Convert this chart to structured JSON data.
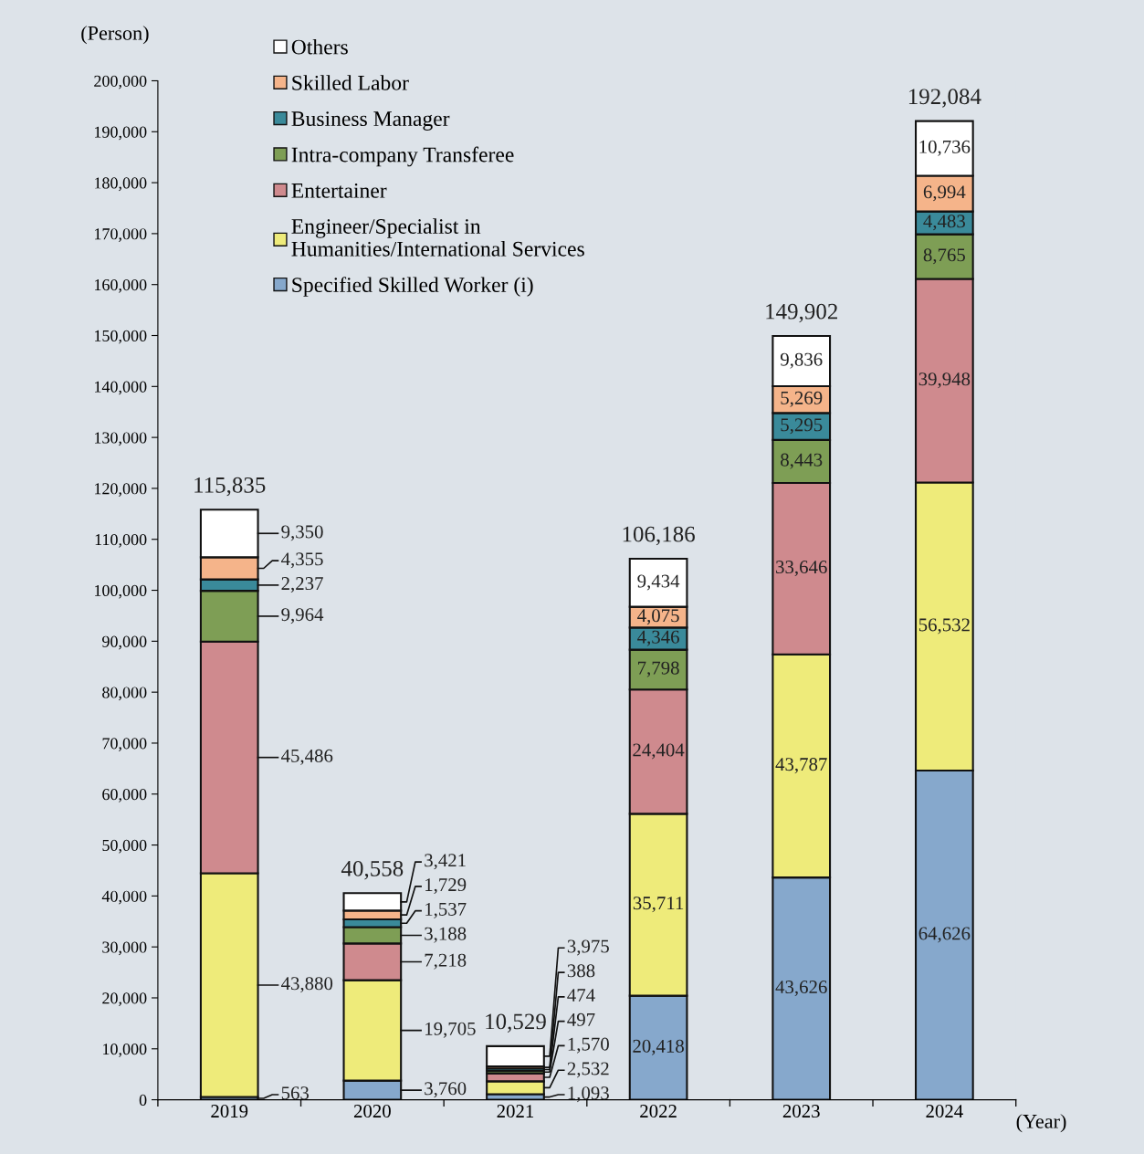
{
  "chart_data": {
    "type": "bar",
    "stacked": true,
    "ylabel": "(Person)",
    "xlabel": "(Year)",
    "categories": [
      "2019",
      "2020",
      "2021",
      "2022",
      "2023",
      "2024"
    ],
    "series": [
      {
        "name": "Specified Skilled Worker (i)",
        "color": "#86a8cc",
        "values": [
          563,
          3760,
          1093,
          20418,
          43626,
          64626
        ],
        "value_labels": [
          "563",
          "3,760",
          "1,093",
          "20,418",
          "43,626",
          "64,626"
        ]
      },
      {
        "name": "Engineer/Specialist in\nHumanities/International Services",
        "color": "#eeeb7a",
        "values": [
          43880,
          19705,
          2532,
          35711,
          43787,
          56532
        ],
        "value_labels": [
          "43,880",
          "19,705",
          "2,532",
          "35,711",
          "43,787",
          "56,532"
        ]
      },
      {
        "name": "Entertainer",
        "color": "#cf8a8e",
        "values": [
          45486,
          7218,
          1570,
          24404,
          33646,
          39948
        ],
        "value_labels": [
          "45,486",
          "7,218",
          "1,570",
          "24,404",
          "33,646",
          "39,948"
        ]
      },
      {
        "name": "Intra-company Transferee",
        "color": "#7e9e55",
        "values": [
          9964,
          3188,
          497,
          7798,
          8443,
          8765
        ],
        "value_labels": [
          "9,964",
          "3,188",
          "497",
          "7,798",
          "8,443",
          "8,765"
        ]
      },
      {
        "name": "Business Manager",
        "color": "#3a8a9a",
        "values": [
          2237,
          1537,
          474,
          4346,
          5295,
          4483
        ],
        "value_labels": [
          "2,237",
          "1,537",
          "474",
          "4,346",
          "5,295",
          "4,483"
        ]
      },
      {
        "name": "Skilled Labor",
        "color": "#f5b48a",
        "values": [
          4355,
          1729,
          388,
          4075,
          5269,
          6994
        ],
        "value_labels": [
          "4,355",
          "1,729",
          "388",
          "4,075",
          "5,269",
          "6,994"
        ]
      },
      {
        "name": "Others",
        "color": "#ffffff",
        "values": [
          9350,
          3421,
          3975,
          9434,
          9836,
          10736
        ],
        "value_labels": [
          "9,350",
          "3,421",
          "3,975",
          "9,434",
          "9,836",
          "10,736"
        ]
      }
    ],
    "totals": [
      "115,835",
      "40,558",
      "10,529",
      "106,186",
      "149,902",
      "192,084"
    ],
    "legend": "top left",
    "grid": false,
    "ylim": [
      0,
      200000
    ],
    "yticks": [
      {
        "value": 0,
        "label": "0"
      },
      {
        "value": 10000,
        "label": "10,000"
      },
      {
        "value": 20000,
        "label": "20,000"
      },
      {
        "value": 30000,
        "label": "30,000"
      },
      {
        "value": 40000,
        "label": "40,000"
      },
      {
        "value": 50000,
        "label": "50,000"
      },
      {
        "value": 60000,
        "label": "60,000"
      },
      {
        "value": 70000,
        "label": "70,000"
      },
      {
        "value": 80000,
        "label": "80,000"
      },
      {
        "value": 90000,
        "label": "90,000"
      },
      {
        "value": 100000,
        "label": "100,000"
      },
      {
        "value": 110000,
        "label": "110,000"
      },
      {
        "value": 120000,
        "label": "120,000"
      },
      {
        "value": 130000,
        "label": "130,000"
      },
      {
        "value": 140000,
        "label": "140,000"
      },
      {
        "value": 150000,
        "label": "150,000"
      },
      {
        "value": 160000,
        "label": "160,000"
      },
      {
        "value": 170000,
        "label": "170,000"
      },
      {
        "value": 180000,
        "label": "180,000"
      },
      {
        "value": 190000,
        "label": "190,000"
      },
      {
        "value": 200000,
        "label": "200,000"
      }
    ]
  }
}
